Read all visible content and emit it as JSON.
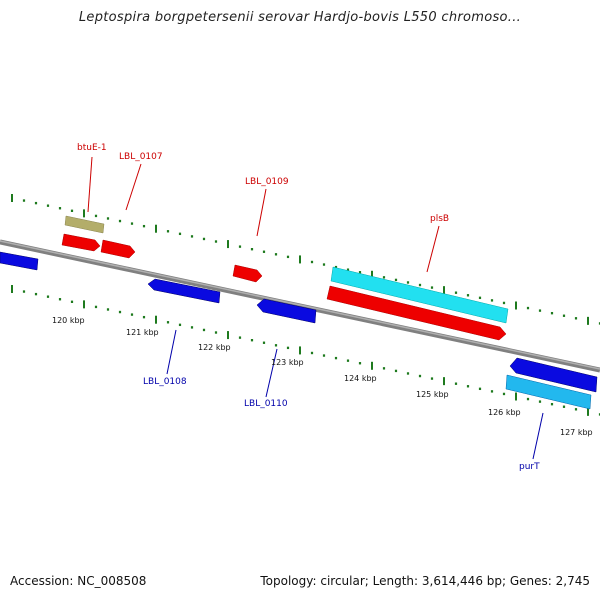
{
  "title": "Leptospira borgpetersenii serovar Hardjo-bovis L550 chromoso...",
  "footer": {
    "accession": "Accession: NC_008508",
    "summary": "Topology: circular; Length: 3,614,446 bp; Genes: 2,745"
  },
  "colors": {
    "backbone": "#8a8a8a",
    "tick": "#1e7a1e",
    "gene_forward": "#ee0000",
    "gene_reverse": "#0a0ae0",
    "rna": "#b3ad6a",
    "cds_highlight": "#22e0f0",
    "label_forward": "#cc0000",
    "label_reverse": "#0000aa"
  },
  "scale": {
    "ticks": [
      "120 kbp",
      "121 kbp",
      "122 kbp",
      "123 kbp",
      "124 kbp",
      "125 kbp",
      "126 kbp",
      "127 kbp"
    ]
  },
  "labels": {
    "btuE": "btuE-1",
    "lbl0107": "LBL_0107",
    "lbl0109": "LBL_0109",
    "plsB": "plsB",
    "lbl0108": "LBL_0108",
    "lbl0110": "LBL_0110",
    "purT": "purT"
  }
}
